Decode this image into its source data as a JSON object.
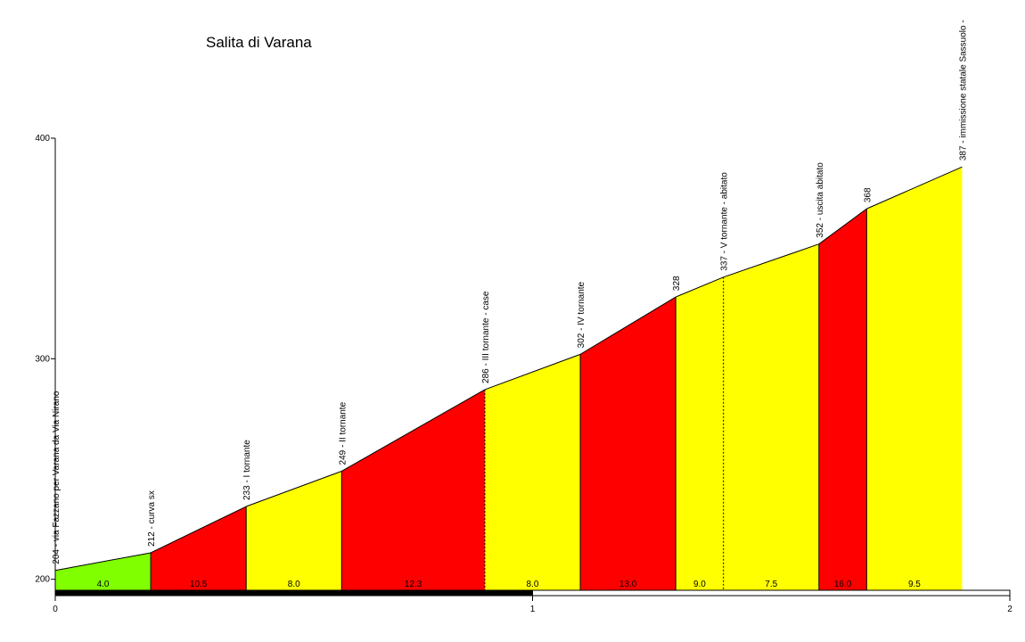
{
  "chart_data": {
    "type": "area",
    "title": "Salita di Varana",
    "xlabel": "",
    "ylabel": "",
    "xlim": [
      0,
      2
    ],
    "ylim": [
      195,
      400
    ],
    "x_ticks": [
      {
        "value": 0,
        "label": "0"
      },
      {
        "value": 1,
        "label": "1"
      },
      {
        "value": 2,
        "label": "2"
      }
    ],
    "y_ticks": [
      {
        "value": 200,
        "label": "200"
      },
      {
        "value": 300,
        "label": "300"
      },
      {
        "value": 400,
        "label": "400"
      }
    ],
    "points": [
      {
        "x": 0.0,
        "y": 204,
        "label": "204 - via Fazzano per Varana da Via Nirano",
        "dashed": false
      },
      {
        "x": 0.2,
        "y": 212,
        "label": "212 - curva sx",
        "dashed": false
      },
      {
        "x": 0.4,
        "y": 233,
        "label": "233 - I  tornante",
        "dashed": false
      },
      {
        "x": 0.6,
        "y": 249,
        "label": "249 - II tornante",
        "dashed": false
      },
      {
        "x": 0.9,
        "y": 286,
        "label": "286 - III tornante - case",
        "dashed": true
      },
      {
        "x": 1.1,
        "y": 302,
        "label": "302 - IV tornante",
        "dashed": false
      },
      {
        "x": 1.3,
        "y": 328,
        "label": "328",
        "dashed": false
      },
      {
        "x": 1.4,
        "y": 337,
        "label": "337 - V  tornante - abitato",
        "dashed": true
      },
      {
        "x": 1.6,
        "y": 352,
        "label": "352 - uscita abitato",
        "dashed": false
      },
      {
        "x": 1.7,
        "y": 368,
        "label": "368",
        "dashed": false
      },
      {
        "x": 1.9,
        "y": 387,
        "label": "387 - immissione statale Sassuolo -",
        "dashed": false
      }
    ],
    "segments": [
      {
        "gradient": "4.0",
        "color": "#80ff00"
      },
      {
        "gradient": "10.5",
        "color": "#ff0000"
      },
      {
        "gradient": "8.0",
        "color": "#ffff00"
      },
      {
        "gradient": "12.3",
        "color": "#ff0000"
      },
      {
        "gradient": "8.0",
        "color": "#ffff00"
      },
      {
        "gradient": "13.0",
        "color": "#ff0000"
      },
      {
        "gradient": "9.0",
        "color": "#ffff00"
      },
      {
        "gradient": "7.5",
        "color": "#ffff00"
      },
      {
        "gradient": "16.0",
        "color": "#ff0000"
      },
      {
        "gradient": "9.5",
        "color": "#ffff00"
      }
    ]
  }
}
